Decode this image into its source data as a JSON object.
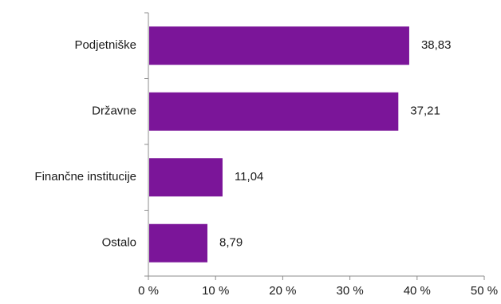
{
  "chart_data": {
    "type": "bar",
    "orientation": "horizontal",
    "categories": [
      "Podjetniške",
      "Državne",
      "Finančne institucije",
      "Ostalo"
    ],
    "values": [
      38.83,
      37.21,
      11.04,
      8.79
    ],
    "value_labels": [
      "38,83",
      "37,21",
      "11,04",
      "8,79"
    ],
    "x_ticks": [
      0,
      10,
      20,
      30,
      40,
      50
    ],
    "x_tick_labels": [
      "0 %",
      "10 %",
      "20 %",
      "30 %",
      "40 %",
      "50 %"
    ],
    "xlim": [
      0,
      50
    ],
    "grid": false,
    "bar_color": "#7b1599",
    "title": "",
    "xlabel": "",
    "ylabel": ""
  }
}
